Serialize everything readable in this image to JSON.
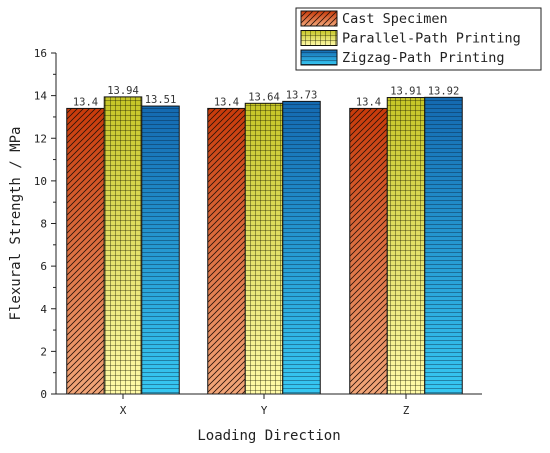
{
  "chart_data": {
    "type": "bar",
    "title": "",
    "xlabel": "Loading Direction",
    "ylabel": "Flexural Strength / MPa",
    "categories": [
      "X",
      "Y",
      "Z"
    ],
    "ylim": [
      0,
      16
    ],
    "yticks": [
      0,
      2,
      4,
      6,
      8,
      10,
      12,
      14,
      16
    ],
    "legend_position": "top-right",
    "series": [
      {
        "name": "Cast Specimen",
        "values": [
          13.4,
          13.4,
          13.4
        ],
        "value_labels": [
          "13.4",
          "13.4",
          "13.4"
        ],
        "pattern": "diagonal-hatch",
        "colors": [
          "#f2a679",
          "#c83a0a"
        ]
      },
      {
        "name": "Parallel-Path Printing",
        "values": [
          13.94,
          13.64,
          13.91
        ],
        "value_labels": [
          "13.94",
          "13.64",
          "13.91"
        ],
        "pattern": "grid",
        "colors": [
          "#fffaa8",
          "#c5c526"
        ]
      },
      {
        "name": "Zigzag-Path Printing",
        "values": [
          13.51,
          13.73,
          13.92
        ],
        "value_labels": [
          "13.51",
          "13.73",
          "13.92"
        ],
        "pattern": "horizontal-lines",
        "colors": [
          "#37c8f2",
          "#1469b0"
        ]
      }
    ]
  }
}
